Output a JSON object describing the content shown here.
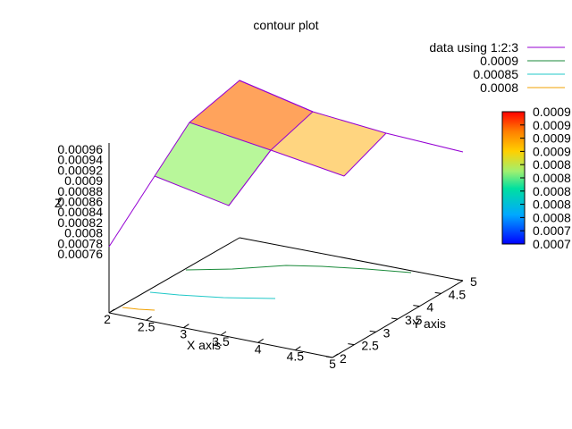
{
  "chart_data": {
    "type": "surface3d-contour",
    "title": "contour plot",
    "xlabel": "X axis",
    "ylabel": "Y axis",
    "x_ticks": [
      "2",
      "2.5",
      "3",
      "3.5",
      "4",
      "4.5",
      "5"
    ],
    "y_ticks": [
      "2",
      "2.5",
      "3",
      "3.5",
      "4",
      "4.5",
      "5"
    ],
    "z_ticks": [
      "0.00096",
      "0.00094",
      "0.00092",
      "0.0009",
      "0.00088",
      "0.00086",
      "0.00084",
      "0.00082",
      "0.0008",
      "0.00078",
      "0.00076"
    ],
    "z_axis_label_fragment": "Z",
    "xlim": [
      2,
      5
    ],
    "ylim": [
      2,
      5
    ],
    "zlim": [
      0.00076,
      0.00096
    ],
    "legend_position": "top-right",
    "legend": [
      {
        "label": "data using 1:2:3",
        "color": "#9400d3"
      },
      {
        "label": "0.0009",
        "color": "#1a8a3a"
      },
      {
        "label": "0.00085",
        "color": "#20c8c8"
      },
      {
        "label": "0.0008",
        "color": "#f0a000"
      }
    ],
    "colorbar_ticks": [
      "0.0009",
      "0.0009",
      "0.0009",
      "0.0009",
      "0.0008",
      "0.0008",
      "0.0008",
      "0.0008",
      "0.0008",
      "0.0007",
      "0.0007"
    ],
    "surface_grid": {
      "x": [
        2,
        3,
        4,
        5
      ],
      "y": [
        2,
        3,
        4,
        5
      ],
      "z_row_y5": [
        0.00089,
        0.00096,
        0.00094,
        0.00092
      ],
      "z_row_y4": [
        0.00082,
        0.000915,
        0.000905,
        0.00089
      ]
    },
    "colored_patches": [
      {
        "fill": "#b8f79a",
        "range": "x 3-4, y 4-5"
      },
      {
        "fill": "#ffa35c",
        "range": "x 4-5, y 4-5"
      },
      {
        "fill": "#ffd580",
        "range": "x 4.5-5, y 4-5"
      }
    ]
  }
}
